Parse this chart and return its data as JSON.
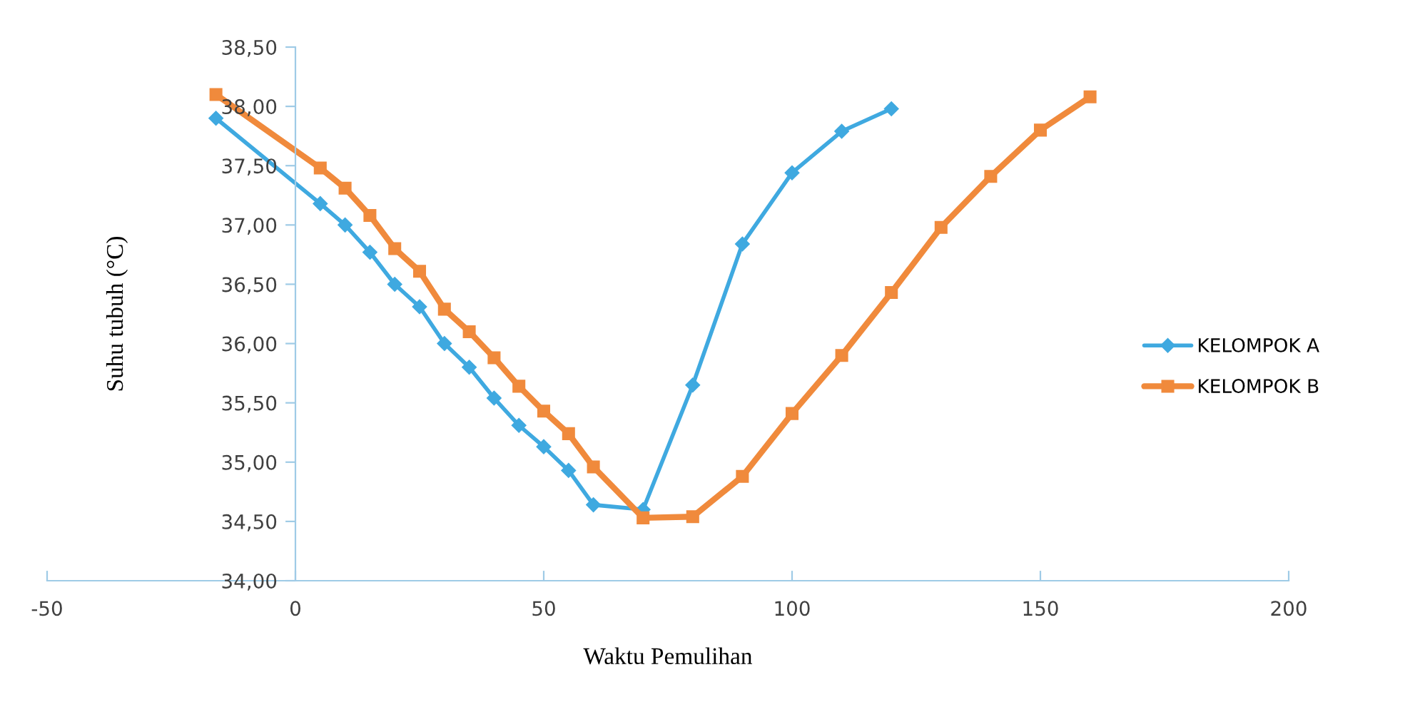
{
  "chart_data": {
    "type": "line",
    "xlabel": "Waktu Pemulihan",
    "ylabel": "Suhu tubuh (°C)",
    "xlim": [
      -50,
      200
    ],
    "xticks": [
      -50,
      0,
      50,
      100,
      150,
      200
    ],
    "ylim": [
      34,
      38.5
    ],
    "yticks": [
      {
        "value": 34,
        "label": "34,00"
      },
      {
        "value": 34.5,
        "label": "34,50"
      },
      {
        "value": 35,
        "label": "35,00"
      },
      {
        "value": 35.5,
        "label": "35,50"
      },
      {
        "value": 36,
        "label": "36,00"
      },
      {
        "value": 36.5,
        "label": "36,50"
      },
      {
        "value": 37,
        "label": "37,00"
      },
      {
        "value": 37.5,
        "label": "37,50"
      },
      {
        "value": 38,
        "label": "38,00"
      },
      {
        "value": 38.5,
        "label": "38,50"
      }
    ],
    "grid": false,
    "legend": "right",
    "line_style": "solid",
    "series": [
      {
        "name": "KELOMPOK A",
        "color": "#3fa9e0",
        "marker": "diamond",
        "x": [
          -16,
          5,
          10,
          15,
          20,
          25,
          30,
          35,
          40,
          45,
          50,
          55,
          60,
          70,
          80,
          90,
          100,
          110,
          120
        ],
        "values": [
          37.9,
          37.18,
          37.0,
          36.77,
          36.5,
          36.31,
          36.0,
          35.8,
          35.54,
          35.31,
          35.13,
          34.93,
          34.64,
          34.6,
          35.65,
          36.84,
          37.44,
          37.79,
          37.98
        ]
      },
      {
        "name": "KELOMPOK B",
        "color": "#f08a3c",
        "marker": "square",
        "x": [
          -16,
          5,
          10,
          15,
          20,
          25,
          30,
          35,
          40,
          45,
          50,
          55,
          60,
          70,
          80,
          90,
          100,
          110,
          120,
          130,
          140,
          150,
          160
        ],
        "values": [
          38.1,
          37.48,
          37.31,
          37.08,
          36.8,
          36.61,
          36.29,
          36.1,
          35.88,
          35.64,
          35.43,
          35.24,
          34.96,
          34.53,
          34.54,
          34.88,
          35.41,
          35.9,
          36.43,
          36.98,
          37.41,
          37.8,
          38.08
        ]
      }
    ]
  }
}
